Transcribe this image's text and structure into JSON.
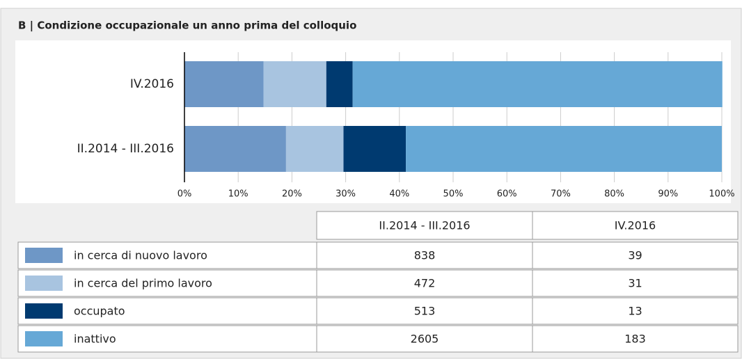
{
  "chart_data": {
    "type": "bar",
    "orientation": "horizontal",
    "stacked": true,
    "title": "B | Condizione occupazionale un anno prima del colloquio",
    "categories": [
      "IV.2016",
      "II.2014 - III.2016"
    ],
    "series": [
      {
        "name": "in cerca di nuovo lavoro",
        "color": "#6e97c6",
        "values": [
          14.7,
          18.9
        ]
      },
      {
        "name": "in cerca del primo lavoro",
        "color": "#a8c4e0",
        "values": [
          11.7,
          10.7
        ]
      },
      {
        "name": "occupato",
        "color": "#003a70",
        "values": [
          4.9,
          11.6
        ]
      },
      {
        "name": "inattivo",
        "color": "#66a8d6",
        "values": [
          68.8,
          58.8
        ]
      }
    ],
    "xlim": [
      0,
      100
    ],
    "xticks": [
      {
        "value": 0,
        "label": "0%"
      },
      {
        "value": 10,
        "label": "10%"
      },
      {
        "value": 20,
        "label": "20%"
      },
      {
        "value": 30,
        "label": "30%"
      },
      {
        "value": 40,
        "label": "40%"
      },
      {
        "value": 50,
        "label": "50%"
      },
      {
        "value": 60,
        "label": "60%"
      },
      {
        "value": 70,
        "label": "70%"
      },
      {
        "value": 80,
        "label": "80%"
      },
      {
        "value": 90,
        "label": "90%"
      },
      {
        "value": 100,
        "label": "100%"
      }
    ],
    "grid": true,
    "table": {
      "columns": [
        "II.2014 - III.2016",
        "IV.2016"
      ],
      "rows": [
        [
          838,
          39
        ],
        [
          472,
          31
        ],
        [
          513,
          13
        ],
        [
          2605,
          183
        ]
      ]
    }
  }
}
